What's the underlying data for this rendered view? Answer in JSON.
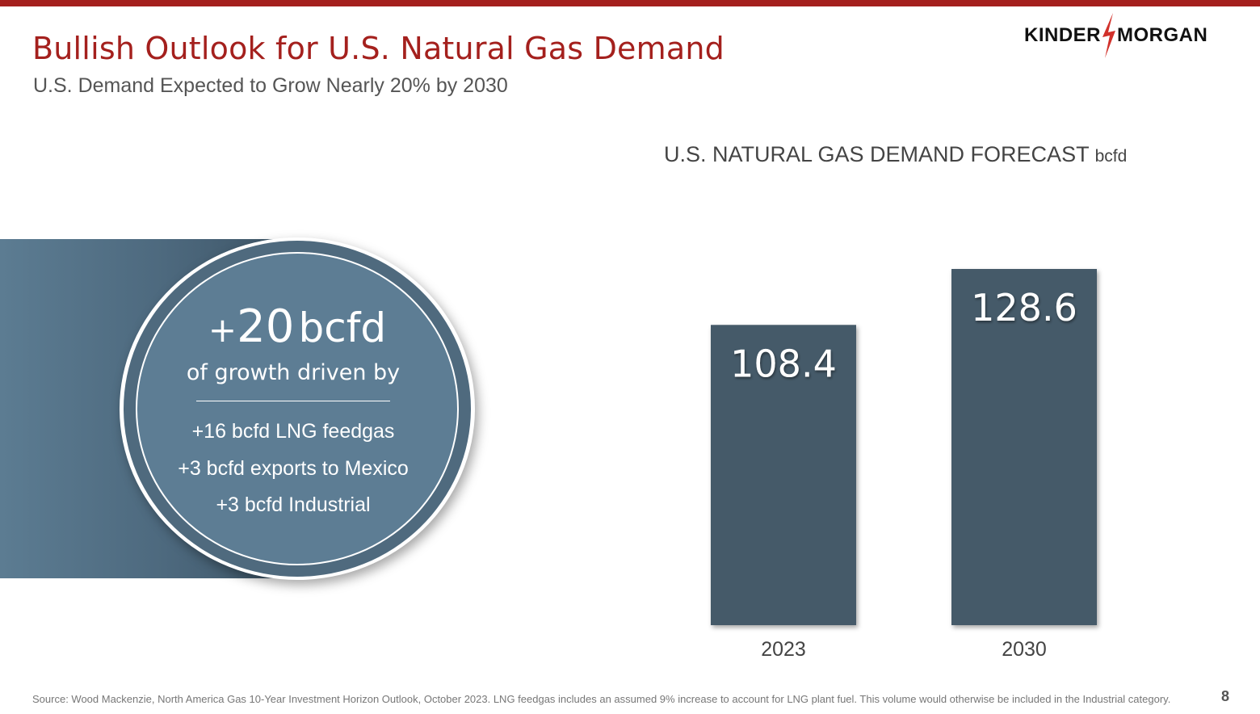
{
  "header": {
    "title": "Bullish Outlook for U.S. Natural Gas Demand",
    "subtitle": "U.S. Demand Expected to Grow Nearly 20% by 2030"
  },
  "logo": {
    "left_word": "KINDER",
    "right_word": "MORGAN",
    "accent_color": "#d1312b"
  },
  "callout": {
    "plus_sign": "+",
    "value": "20",
    "unit": "bcfd",
    "label": "of growth driven by",
    "drivers": [
      "+16 bcfd LNG feedgas",
      "+3 bcfd exports to Mexico",
      "+3 bcfd Industrial"
    ]
  },
  "chart_data": {
    "type": "bar",
    "title": "U.S. NATURAL GAS DEMAND FORECAST",
    "title_unit": "bcfd",
    "categories": [
      "2023",
      "2030"
    ],
    "values": [
      108.4,
      128.6
    ],
    "data_labels": [
      "108.4",
      "128.6"
    ],
    "bar_color": "#455a69",
    "grid": false,
    "legend": "none"
  },
  "footer": {
    "source": "Source: Wood Mackenzie, North America Gas 10-Year Investment Horizon Outlook, October 2023. LNG feedgas includes an assumed 9% increase to account for LNG plant fuel. This volume would otherwise be included in the Industrial category.",
    "page_number": "8"
  },
  "colors": {
    "brand_red": "#a4201d",
    "panel_blue": "#5d7d94"
  }
}
